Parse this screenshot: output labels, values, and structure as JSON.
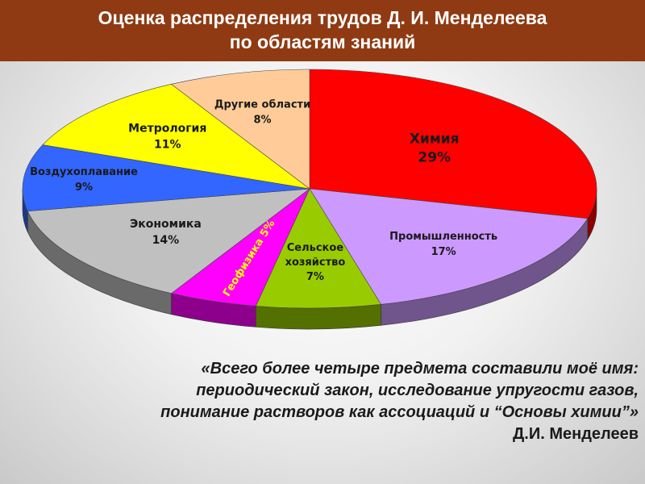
{
  "header": {
    "title_line1": "Оценка распределения трудов Д. И. Менделеева",
    "title_line2": "по областям знаний"
  },
  "chart_data": {
    "type": "pie",
    "title": "Оценка распределения трудов Д. И. Менделеева по областям знаний",
    "three_d": true,
    "legend": "none",
    "slices": [
      {
        "label": "Химия",
        "value": 29,
        "value_text": "29%",
        "color": "#ff0000"
      },
      {
        "label": "Промышленность",
        "value": 17,
        "value_text": "17%",
        "color": "#cc99ff"
      },
      {
        "label": "Сельское хозяйство",
        "label_lines": [
          "Сельское",
          "хозяйство"
        ],
        "value": 7,
        "value_text": "7%",
        "color": "#99cc00"
      },
      {
        "label": "Геофизика",
        "value": 5,
        "value_text": "5%",
        "inline_text": "Геофизика 5%",
        "color": "#ff00ff"
      },
      {
        "label": "Экономика",
        "value": 14,
        "value_text": "14%",
        "color": "#c0c0c0"
      },
      {
        "label": "Воздухоплавание",
        "value": 9,
        "value_text": "9%",
        "color": "#3366ff"
      },
      {
        "label": "Метрология",
        "value": 11,
        "value_text": "11%",
        "color": "#ffff00"
      },
      {
        "label": "Другие области",
        "value": 8,
        "value_text": "8%",
        "color": "#ffcc99"
      }
    ]
  },
  "quote": {
    "line1": "«Всего более четыре предмета составили моё имя:",
    "line2": "периодический закон, исследование упругости газов,",
    "line3": "понимание растворов как ассоциаций и “Основы химии”»",
    "author": "Д.И. Менделеев"
  }
}
